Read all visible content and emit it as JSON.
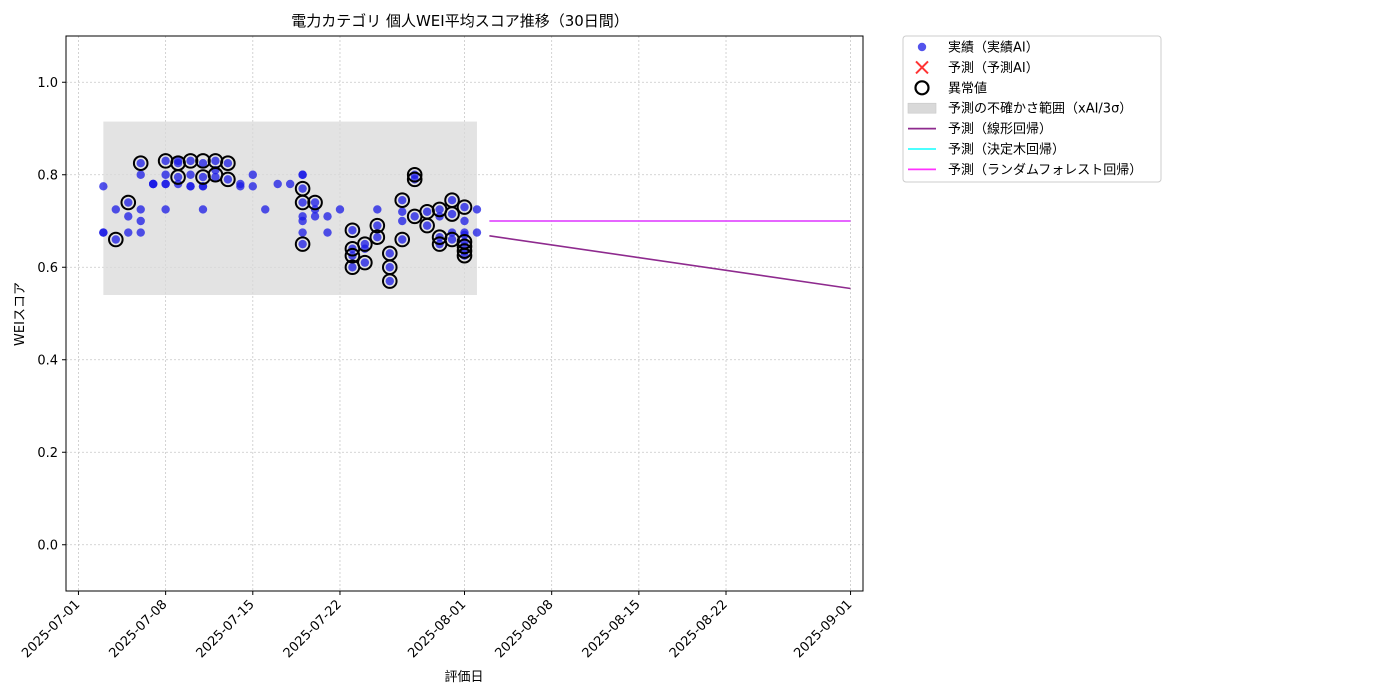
{
  "chart_data": {
    "type": "scatter",
    "title": "電力カテゴリ 個人WEI平均スコア推移（30日間）",
    "xlabel": "評価日",
    "ylabel": "WEIスコア",
    "xlim": [
      "2025-06-30",
      "2025-09-02"
    ],
    "ylim": [
      -0.1,
      1.1
    ],
    "x_ticks": [
      "2025-07-01",
      "2025-07-08",
      "2025-07-15",
      "2025-07-22",
      "2025-08-01",
      "2025-08-08",
      "2025-08-15",
      "2025-08-22",
      "2025-09-01"
    ],
    "y_ticks": [
      "0.0",
      "0.2",
      "0.4",
      "0.6",
      "0.8",
      "1.0"
    ],
    "grid": true,
    "legend_position": "outside-top-right",
    "colors": {
      "actual": "#1a1ae6",
      "predicted": "#ff3333",
      "anomaly_edge": "#000000",
      "uncertainty": "#d9d9d9",
      "linear": "#8e2a8e",
      "tree": "#33ffff",
      "forest": "#ff33ff"
    },
    "legend": [
      {
        "key": "actual",
        "label": "実績（実績AI）"
      },
      {
        "key": "predicted",
        "label": "予測（予測AI）"
      },
      {
        "key": "anomaly",
        "label": "異常値"
      },
      {
        "key": "uncertainty",
        "label": "予測の不確かさ範囲（xAI/3σ）"
      },
      {
        "key": "linear",
        "label": "予測（線形回帰）"
      },
      {
        "key": "tree",
        "label": "予測（決定木回帰）"
      },
      {
        "key": "forest",
        "label": "予測（ランダムフォレスト回帰）"
      }
    ],
    "uncertainty_band": {
      "x_start": "2025-07-03",
      "x_end": "2025-08-02",
      "y_low": 0.54,
      "y_high": 0.915
    },
    "series": [
      {
        "name": "実績（実績AI）",
        "points": [
          [
            "2025-07-03",
            0.675
          ],
          [
            "2025-07-03",
            0.775
          ],
          [
            "2025-07-03",
            0.675
          ],
          [
            "2025-07-04",
            0.66
          ],
          [
            "2025-07-04",
            0.725
          ],
          [
            "2025-07-05",
            0.675
          ],
          [
            "2025-07-05",
            0.74
          ],
          [
            "2025-07-05",
            0.71
          ],
          [
            "2025-07-06",
            0.725
          ],
          [
            "2025-07-06",
            0.7
          ],
          [
            "2025-07-06",
            0.675
          ],
          [
            "2025-07-06",
            0.825
          ],
          [
            "2025-07-06",
            0.8
          ],
          [
            "2025-07-07",
            0.78
          ],
          [
            "2025-07-07",
            0.78
          ],
          [
            "2025-07-07",
            0.78
          ],
          [
            "2025-07-08",
            0.78
          ],
          [
            "2025-07-08",
            0.8
          ],
          [
            "2025-07-08",
            0.83
          ],
          [
            "2025-07-08",
            0.725
          ],
          [
            "2025-07-08",
            0.78
          ],
          [
            "2025-07-09",
            0.78
          ],
          [
            "2025-07-09",
            0.825
          ],
          [
            "2025-07-09",
            0.83
          ],
          [
            "2025-07-09",
            0.795
          ],
          [
            "2025-07-10",
            0.775
          ],
          [
            "2025-07-10",
            0.775
          ],
          [
            "2025-07-10",
            0.8
          ],
          [
            "2025-07-10",
            0.83
          ],
          [
            "2025-07-11",
            0.775
          ],
          [
            "2025-07-11",
            0.825
          ],
          [
            "2025-07-11",
            0.725
          ],
          [
            "2025-07-11",
            0.775
          ],
          [
            "2025-07-11",
            0.795
          ],
          [
            "2025-07-12",
            0.83
          ],
          [
            "2025-07-12",
            0.795
          ],
          [
            "2025-07-12",
            0.81
          ],
          [
            "2025-07-13",
            0.825
          ],
          [
            "2025-07-13",
            0.79
          ],
          [
            "2025-07-14",
            0.78
          ],
          [
            "2025-07-14",
            0.775
          ],
          [
            "2025-07-15",
            0.8
          ],
          [
            "2025-07-15",
            0.775
          ],
          [
            "2025-07-16",
            0.725
          ],
          [
            "2025-07-17",
            0.78
          ],
          [
            "2025-07-18",
            0.78
          ],
          [
            "2025-07-19",
            0.8
          ],
          [
            "2025-07-19",
            0.8
          ],
          [
            "2025-07-19",
            0.77
          ],
          [
            "2025-07-19",
            0.74
          ],
          [
            "2025-07-19",
            0.71
          ],
          [
            "2025-07-19",
            0.7
          ],
          [
            "2025-07-19",
            0.675
          ],
          [
            "2025-07-19",
            0.65
          ],
          [
            "2025-07-20",
            0.74
          ],
          [
            "2025-07-20",
            0.725
          ],
          [
            "2025-07-20",
            0.71
          ],
          [
            "2025-07-21",
            0.675
          ],
          [
            "2025-07-21",
            0.71
          ],
          [
            "2025-07-22",
            0.725
          ],
          [
            "2025-07-23",
            0.68
          ],
          [
            "2025-07-23",
            0.64
          ],
          [
            "2025-07-23",
            0.625
          ],
          [
            "2025-07-23",
            0.6
          ],
          [
            "2025-07-24",
            0.65
          ],
          [
            "2025-07-24",
            0.64
          ],
          [
            "2025-07-24",
            0.61
          ],
          [
            "2025-07-25",
            0.69
          ],
          [
            "2025-07-25",
            0.665
          ],
          [
            "2025-07-25",
            0.725
          ],
          [
            "2025-07-26",
            0.63
          ],
          [
            "2025-07-26",
            0.6
          ],
          [
            "2025-07-26",
            0.57
          ],
          [
            "2025-07-27",
            0.66
          ],
          [
            "2025-07-27",
            0.745
          ],
          [
            "2025-07-27",
            0.72
          ],
          [
            "2025-07-27",
            0.7
          ],
          [
            "2025-07-28",
            0.8
          ],
          [
            "2025-07-28",
            0.79
          ],
          [
            "2025-07-28",
            0.71
          ],
          [
            "2025-07-29",
            0.72
          ],
          [
            "2025-07-29",
            0.69
          ],
          [
            "2025-07-30",
            0.665
          ],
          [
            "2025-07-30",
            0.65
          ],
          [
            "2025-07-30",
            0.725
          ],
          [
            "2025-07-30",
            0.71
          ],
          [
            "2025-07-31",
            0.745
          ],
          [
            "2025-07-31",
            0.715
          ],
          [
            "2025-07-31",
            0.675
          ],
          [
            "2025-07-31",
            0.66
          ],
          [
            "2025-08-01",
            0.73
          ],
          [
            "2025-08-01",
            0.7
          ],
          [
            "2025-08-01",
            0.67
          ],
          [
            "2025-08-01",
            0.655
          ],
          [
            "2025-08-01",
            0.645
          ],
          [
            "2025-08-01",
            0.635
          ],
          [
            "2025-08-01",
            0.625
          ],
          [
            "2025-08-01",
            0.675
          ],
          [
            "2025-08-02",
            0.725
          ],
          [
            "2025-08-02",
            0.675
          ]
        ]
      },
      {
        "name": "異常値",
        "points": [
          [
            "2025-07-04",
            0.66
          ],
          [
            "2025-07-05",
            0.74
          ],
          [
            "2025-07-06",
            0.825
          ],
          [
            "2025-07-08",
            0.83
          ],
          [
            "2025-07-09",
            0.825
          ],
          [
            "2025-07-09",
            0.795
          ],
          [
            "2025-07-10",
            0.83
          ],
          [
            "2025-07-11",
            0.83
          ],
          [
            "2025-07-11",
            0.795
          ],
          [
            "2025-07-12",
            0.83
          ],
          [
            "2025-07-12",
            0.8
          ],
          [
            "2025-07-13",
            0.825
          ],
          [
            "2025-07-13",
            0.79
          ],
          [
            "2025-07-19",
            0.77
          ],
          [
            "2025-07-19",
            0.74
          ],
          [
            "2025-07-19",
            0.65
          ],
          [
            "2025-07-20",
            0.74
          ],
          [
            "2025-07-23",
            0.68
          ],
          [
            "2025-07-23",
            0.64
          ],
          [
            "2025-07-23",
            0.625
          ],
          [
            "2025-07-23",
            0.6
          ],
          [
            "2025-07-24",
            0.65
          ],
          [
            "2025-07-24",
            0.61
          ],
          [
            "2025-07-25",
            0.69
          ],
          [
            "2025-07-25",
            0.665
          ],
          [
            "2025-07-26",
            0.63
          ],
          [
            "2025-07-26",
            0.6
          ],
          [
            "2025-07-26",
            0.57
          ],
          [
            "2025-07-27",
            0.66
          ],
          [
            "2025-07-27",
            0.745
          ],
          [
            "2025-07-28",
            0.8
          ],
          [
            "2025-07-28",
            0.79
          ],
          [
            "2025-07-28",
            0.71
          ],
          [
            "2025-07-29",
            0.72
          ],
          [
            "2025-07-29",
            0.69
          ],
          [
            "2025-07-30",
            0.665
          ],
          [
            "2025-07-30",
            0.65
          ],
          [
            "2025-07-30",
            0.725
          ],
          [
            "2025-07-31",
            0.745
          ],
          [
            "2025-07-31",
            0.715
          ],
          [
            "2025-07-31",
            0.66
          ],
          [
            "2025-08-01",
            0.73
          ],
          [
            "2025-08-01",
            0.655
          ],
          [
            "2025-08-01",
            0.645
          ],
          [
            "2025-08-01",
            0.635
          ],
          [
            "2025-08-01",
            0.625
          ]
        ]
      },
      {
        "name": "予測（線形回帰）",
        "line": [
          [
            "2025-08-03",
            0.668
          ],
          [
            "2025-09-01",
            0.554
          ]
        ]
      },
      {
        "name": "予測（決定木回帰）",
        "line": [
          [
            "2025-08-03",
            0.7
          ],
          [
            "2025-09-01",
            0.7
          ]
        ]
      },
      {
        "name": "予測（ランダムフォレスト回帰）",
        "line": [
          [
            "2025-08-03",
            0.7
          ],
          [
            "2025-09-01",
            0.7
          ]
        ]
      }
    ]
  }
}
